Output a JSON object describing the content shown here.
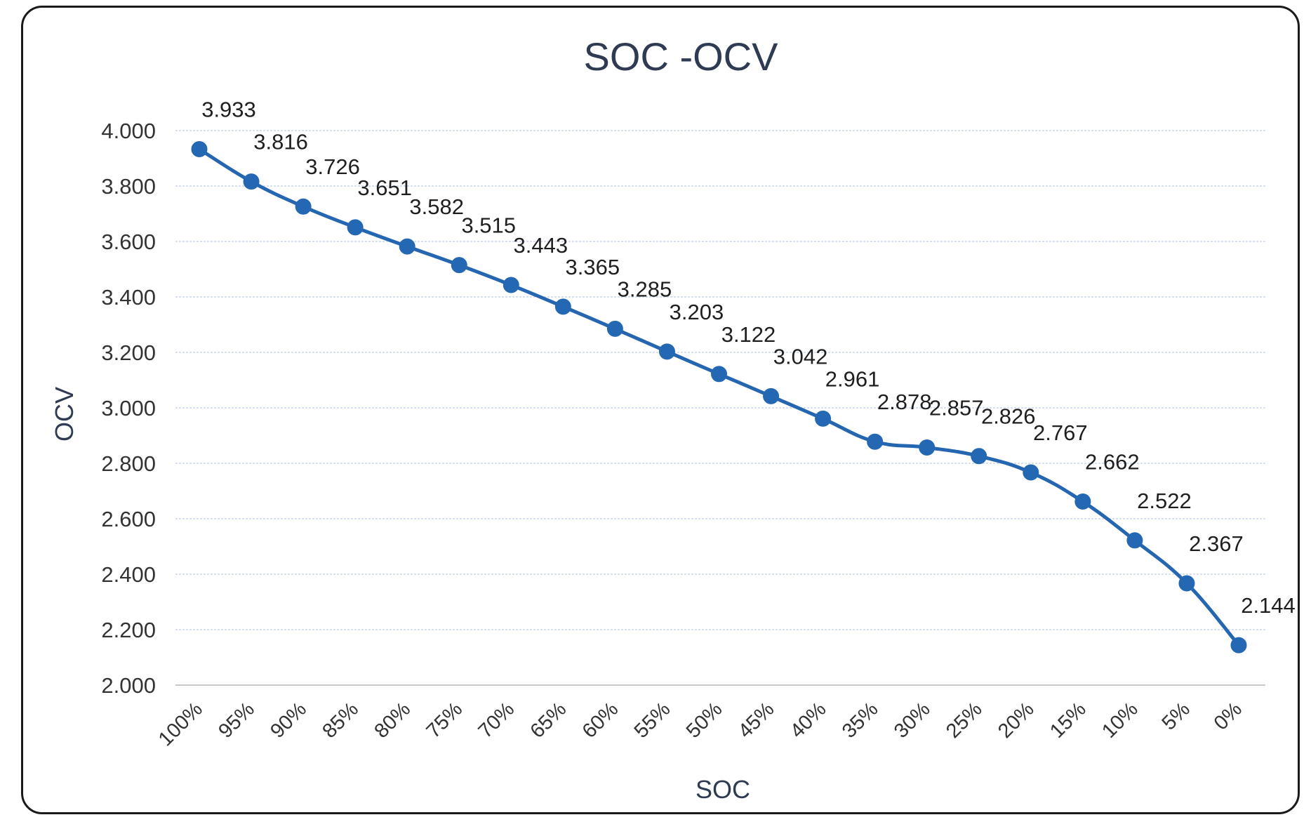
{
  "chart_data": {
    "type": "line",
    "title": "SOC -OCV",
    "xlabel": "SOC",
    "ylabel": "OCV",
    "categories": [
      "100%",
      "95%",
      "90%",
      "85%",
      "80%",
      "75%",
      "70%",
      "65%",
      "60%",
      "55%",
      "50%",
      "45%",
      "40%",
      "35%",
      "30%",
      "25%",
      "20%",
      "15%",
      "10%",
      "5%",
      "0%"
    ],
    "series": [
      {
        "values": [
          3.933,
          3.816,
          3.726,
          3.651,
          3.582,
          3.515,
          3.443,
          3.365,
          3.285,
          3.203,
          3.122,
          3.042,
          2.961,
          2.878,
          2.857,
          2.826,
          2.767,
          2.662,
          2.522,
          2.367,
          2.144
        ],
        "labels": [
          "3.933",
          "3.816",
          "3.726",
          "3.651",
          "3.582",
          "3.515",
          "3.443",
          "3.365",
          "3.285",
          "3.203",
          "3.122",
          "3.042",
          "2.961",
          "2.878",
          "2.857",
          "2.826",
          "2.767",
          "2.662",
          "2.522",
          "2.367",
          "2.144"
        ]
      }
    ],
    "ylim": [
      2.0,
      4.0
    ],
    "yticks": [
      2.0,
      2.2,
      2.4,
      2.6,
      2.8,
      3.0,
      3.2,
      3.4,
      3.6,
      3.8,
      4.0
    ],
    "ytick_labels": [
      "2.000",
      "2.200",
      "2.400",
      "2.600",
      "2.800",
      "3.000",
      "3.200",
      "3.400",
      "3.600",
      "3.800",
      "4.000"
    ],
    "grid": true,
    "legend": "none",
    "colors": {
      "series": "#2566b0",
      "grid": "#c9d6ea",
      "text": "#2f3b52"
    }
  }
}
